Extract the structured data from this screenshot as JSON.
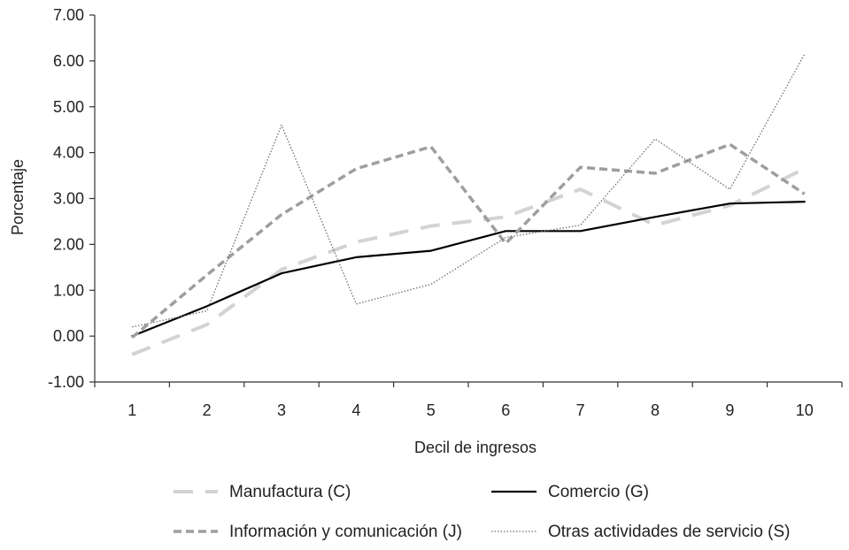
{
  "chart_data": {
    "type": "line",
    "title": "",
    "xlabel": "Decil de ingresos",
    "ylabel": "Porcentaje",
    "x": [
      1,
      2,
      3,
      4,
      5,
      6,
      7,
      8,
      9,
      10
    ],
    "x_tick_labels": [
      "1",
      "2",
      "3",
      "4",
      "5",
      "6",
      "7",
      "8",
      "9",
      "10"
    ],
    "ylim": [
      -1,
      7
    ],
    "y_ticks": [
      -1,
      0,
      1,
      2,
      3,
      4,
      5,
      6,
      7
    ],
    "y_tick_labels": [
      "-1.00",
      "0.00",
      "1.00",
      "2.00",
      "3.00",
      "4.00",
      "5.00",
      "6.00",
      "7.00"
    ],
    "grid": false,
    "legend_position": "bottom",
    "series": [
      {
        "name": "Manufactura (C)",
        "style": "long-dash",
        "color": "#d3d3d3",
        "values": [
          -0.4,
          0.25,
          1.45,
          2.05,
          2.4,
          2.6,
          3.2,
          2.42,
          2.85,
          3.65
        ]
      },
      {
        "name": "Comercio (G)",
        "style": "solid",
        "color": "#000000",
        "values": [
          0.0,
          0.65,
          1.37,
          1.72,
          1.86,
          2.29,
          2.29,
          2.6,
          2.89,
          2.93
        ]
      },
      {
        "name": "Información y comunicación (J)",
        "style": "short-dash",
        "color": "#9e9e9e",
        "values": [
          -0.03,
          1.33,
          2.65,
          3.65,
          4.13,
          2.02,
          3.68,
          3.55,
          4.18,
          3.1
        ]
      },
      {
        "name": "Otras actividades de servicio (S)",
        "style": "dotted",
        "color": "#6f6f6f",
        "values": [
          0.2,
          0.55,
          4.6,
          0.7,
          1.13,
          2.15,
          2.42,
          4.3,
          3.2,
          6.15
        ]
      }
    ]
  }
}
